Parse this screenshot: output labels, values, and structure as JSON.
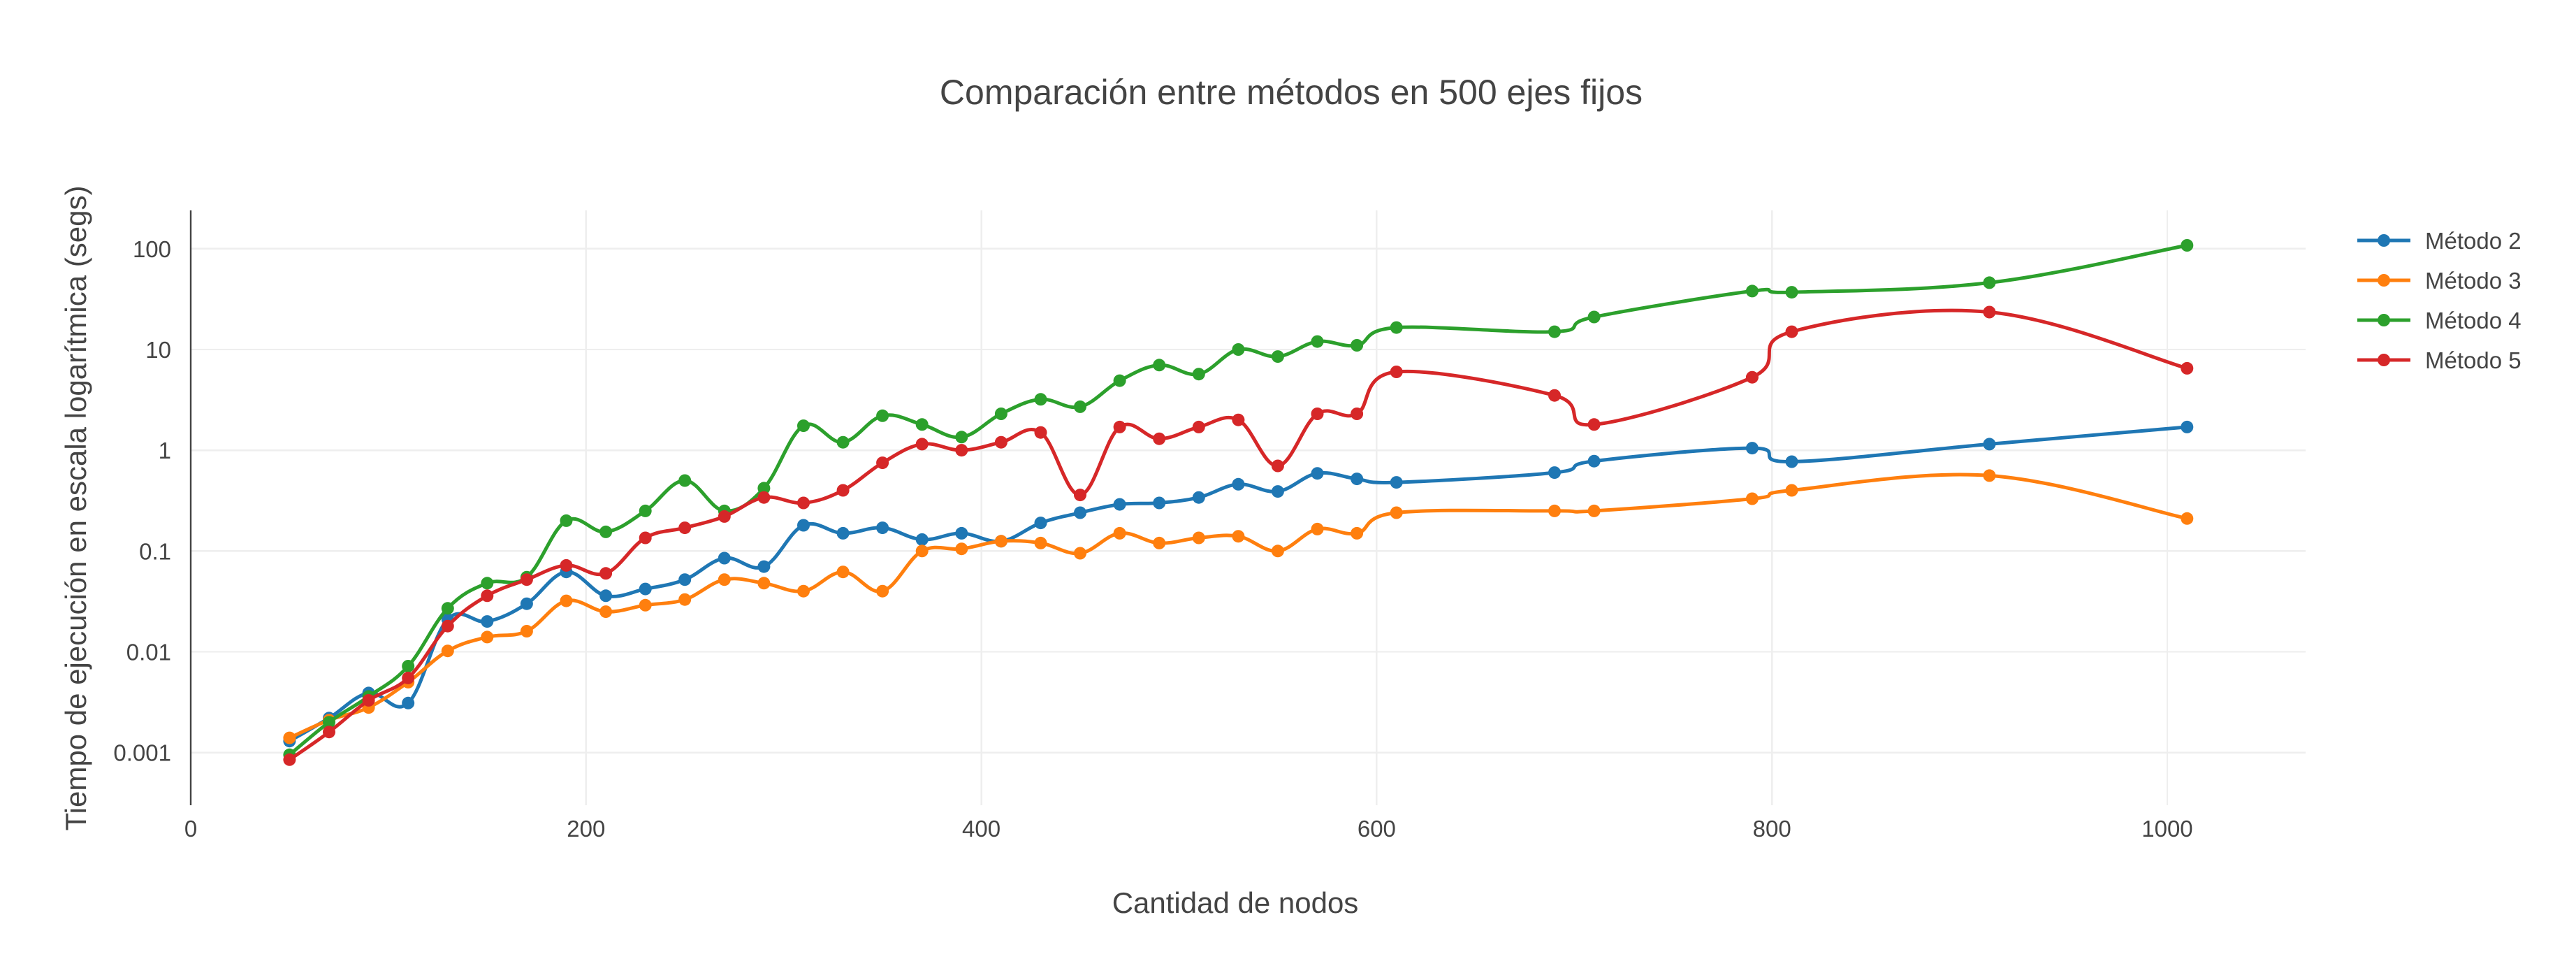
{
  "chart_data": {
    "type": "line",
    "title": "Comparación entre métodos en 500 ejes fijos",
    "xlabel": "Cantidad de nodos",
    "ylabel": "Tiempo de ejecución en escala logarítmica (segs)",
    "xlim": [
      0,
      1070
    ],
    "ylim": [
      0.0003,
      240
    ],
    "yscale": "log",
    "grid": true,
    "legend_position": "top-right",
    "x_ticks": [
      {
        "value": 0,
        "label": "0"
      },
      {
        "value": 200,
        "label": "200"
      },
      {
        "value": 400,
        "label": "400"
      },
      {
        "value": 600,
        "label": "600"
      },
      {
        "value": 800,
        "label": "800"
      },
      {
        "value": 1000,
        "label": "1000"
      }
    ],
    "y_ticks": [
      {
        "value": 0.001,
        "label": "0.001"
      },
      {
        "value": 0.01,
        "label": "0.01"
      },
      {
        "value": 0.1,
        "label": "0.1"
      },
      {
        "value": 1,
        "label": "1"
      },
      {
        "value": 10,
        "label": "10"
      },
      {
        "value": 100,
        "label": "100"
      }
    ],
    "series": [
      {
        "name": "Método 2",
        "color": "#1f77b4",
        "x": [
          50,
          70,
          90,
          110,
          130,
          150,
          170,
          190,
          210,
          230,
          250,
          270,
          290,
          310,
          330,
          350,
          370,
          390,
          410,
          430,
          450,
          470,
          490,
          510,
          530,
          550,
          570,
          590,
          610,
          690,
          710,
          790,
          810,
          910,
          1010
        ],
        "y": [
          0.0013,
          0.0022,
          0.0039,
          0.0031,
          0.021,
          0.02,
          0.03,
          0.062,
          0.036,
          0.042,
          0.052,
          0.085,
          0.07,
          0.18,
          0.15,
          0.17,
          0.13,
          0.15,
          0.125,
          0.19,
          0.24,
          0.29,
          0.3,
          0.34,
          0.46,
          0.39,
          0.59,
          0.52,
          0.48,
          0.6,
          0.78,
          1.05,
          0.77,
          1.15,
          1.7
        ]
      },
      {
        "name": "Método 3",
        "color": "#ff7f0e",
        "x": [
          50,
          70,
          90,
          110,
          130,
          150,
          170,
          190,
          210,
          230,
          250,
          270,
          290,
          310,
          330,
          350,
          370,
          390,
          410,
          430,
          450,
          470,
          490,
          510,
          530,
          550,
          570,
          590,
          610,
          690,
          710,
          790,
          810,
          910,
          1010
        ],
        "y": [
          0.0014,
          0.0021,
          0.0028,
          0.005,
          0.0102,
          0.014,
          0.016,
          0.032,
          0.025,
          0.029,
          0.033,
          0.052,
          0.048,
          0.04,
          0.062,
          0.04,
          0.1,
          0.105,
          0.125,
          0.12,
          0.095,
          0.15,
          0.12,
          0.135,
          0.14,
          0.1,
          0.165,
          0.15,
          0.24,
          0.25,
          0.25,
          0.33,
          0.4,
          0.56,
          0.21
        ]
      },
      {
        "name": "Método 4",
        "color": "#2ca02c",
        "x": [
          50,
          70,
          90,
          110,
          130,
          150,
          170,
          190,
          210,
          230,
          250,
          270,
          290,
          310,
          330,
          350,
          370,
          390,
          410,
          430,
          450,
          470,
          490,
          510,
          530,
          550,
          570,
          590,
          610,
          690,
          710,
          790,
          810,
          910,
          1010
        ],
        "y": [
          0.00095,
          0.002,
          0.0036,
          0.0072,
          0.027,
          0.048,
          0.055,
          0.2,
          0.155,
          0.25,
          0.5,
          0.25,
          0.42,
          1.75,
          1.2,
          2.2,
          1.8,
          1.35,
          2.3,
          3.2,
          2.7,
          4.9,
          7,
          5.7,
          10,
          8.5,
          12,
          11,
          16.5,
          15,
          21,
          38,
          37,
          46,
          108
        ]
      },
      {
        "name": "Método 5",
        "color": "#d62728",
        "x": [
          50,
          70,
          90,
          110,
          130,
          150,
          170,
          190,
          210,
          230,
          250,
          270,
          290,
          310,
          330,
          350,
          370,
          390,
          410,
          430,
          450,
          470,
          490,
          510,
          530,
          550,
          570,
          590,
          610,
          690,
          710,
          790,
          810,
          910,
          1010
        ],
        "y": [
          0.00085,
          0.0016,
          0.0033,
          0.0055,
          0.018,
          0.036,
          0.052,
          0.072,
          0.06,
          0.135,
          0.17,
          0.22,
          0.34,
          0.3,
          0.4,
          0.75,
          1.15,
          1.0,
          1.2,
          1.5,
          0.36,
          1.7,
          1.3,
          1.7,
          2.0,
          0.7,
          2.3,
          2.3,
          6.0,
          3.5,
          1.8,
          5.3,
          15,
          23.5,
          6.5
        ]
      }
    ]
  }
}
